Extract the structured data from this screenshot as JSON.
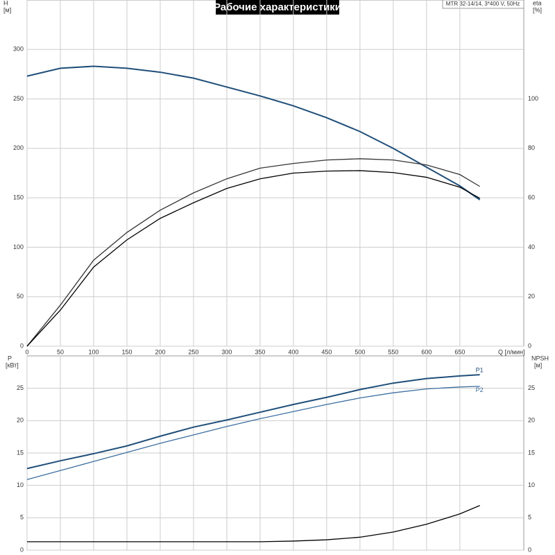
{
  "chart_data": [
    {
      "type": "line",
      "title": "Рабочие характеристики",
      "annotation": "MTR 32-14/14, 3*400 V, 50Hz",
      "xlabel": "Q [л/мин]",
      "ylabel": "H",
      "ylabel_unit": "[м]",
      "y2label": "eta",
      "y2label_unit": "[%]",
      "x": [
        0,
        50,
        100,
        150,
        200,
        250,
        300,
        350,
        400,
        450,
        500,
        550,
        600,
        650,
        680
      ],
      "xlim": [
        0,
        746
      ],
      "xticks": [
        0,
        50,
        100,
        150,
        200,
        250,
        300,
        350,
        400,
        450,
        500,
        550,
        600,
        650
      ],
      "ylim": [
        0,
        350
      ],
      "yticks": [
        0,
        50,
        100,
        150,
        200,
        250,
        300
      ],
      "y2lim": [
        0,
        140
      ],
      "y2ticks": [
        0,
        20,
        40,
        60,
        80,
        100
      ],
      "grid": true,
      "series": [
        {
          "color": "#1f4e79",
          "values": [
            273,
            281,
            283,
            281,
            277,
            271,
            262,
            253,
            243,
            231,
            217,
            200,
            181,
            162,
            148
          ]
        },
        {
          "color": "#333333",
          "axis": "y2",
          "values": [
            0,
            16.6,
            34.8,
            46,
            55,
            62,
            67.7,
            72,
            73.9,
            75.3,
            75.8,
            75.3,
            73.3,
            69.4,
            64.6
          ]
        },
        {
          "color": "#000000",
          "axis": "y2",
          "values": [
            0,
            14.6,
            32,
            43,
            51.7,
            58,
            63.8,
            67.7,
            70,
            70.8,
            71,
            70.2,
            68.3,
            64.3,
            59.8
          ]
        }
      ]
    },
    {
      "type": "line",
      "ylabel": "P",
      "ylabel_unit": "[кВт]",
      "y2label": "NPSH",
      "y2label_unit": "[м]",
      "x": [
        0,
        50,
        100,
        150,
        200,
        250,
        300,
        350,
        400,
        450,
        500,
        550,
        600,
        650,
        680
      ],
      "xlim": [
        0,
        746
      ],
      "ylim": [
        0,
        30
      ],
      "yticks": [
        0,
        5,
        10,
        15,
        20,
        25
      ],
      "y2lim": [
        0,
        30
      ],
      "y2ticks": [
        0,
        5,
        10,
        15,
        20,
        25
      ],
      "grid": true,
      "series": [
        {
          "name": "P1",
          "color": "#1f4e79",
          "values": [
            12.6,
            13.8,
            14.9,
            16.1,
            17.6,
            19.0,
            20.1,
            21.3,
            22.5,
            23.6,
            24.8,
            25.8,
            26.5,
            26.9,
            27.1
          ]
        },
        {
          "name": "P2",
          "color": "#3c6ea0",
          "values": [
            10.9,
            12.3,
            13.7,
            15.1,
            16.5,
            17.8,
            19.1,
            20.3,
            21.4,
            22.5,
            23.5,
            24.3,
            24.9,
            25.2,
            25.3
          ]
        },
        {
          "color": "#000000",
          "axis": "y2",
          "values": [
            1.3,
            1.3,
            1.3,
            1.3,
            1.3,
            1.3,
            1.3,
            1.3,
            1.4,
            1.6,
            2.0,
            2.8,
            4.0,
            5.6,
            6.9
          ]
        }
      ]
    }
  ]
}
